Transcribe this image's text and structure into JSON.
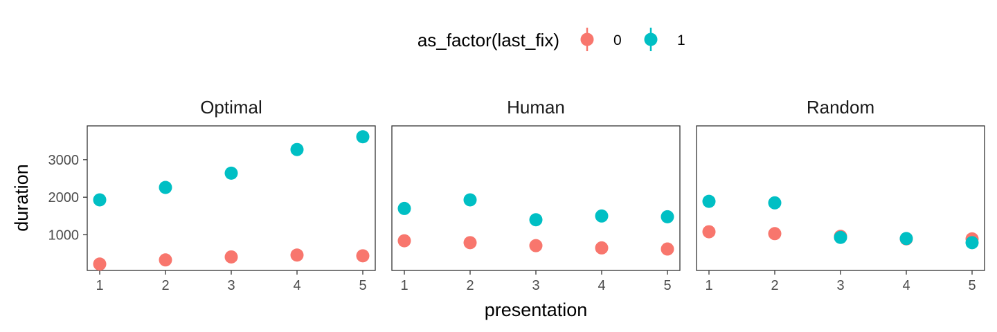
{
  "chart_data": {
    "type": "scatter",
    "xlabel": "presentation",
    "ylabel": "duration",
    "x_ticks": [
      1,
      2,
      3,
      4,
      5
    ],
    "y_ticks": [
      1000,
      2000,
      3000
    ],
    "ylim": [
      50,
      3900
    ],
    "xlim": [
      0.8,
      5.2
    ],
    "grid": false,
    "legend": {
      "title": "as_factor(last_fix)",
      "position": "top",
      "entries": [
        {
          "label": "0",
          "color": "#F8766D"
        },
        {
          "label": "1",
          "color": "#00BFC4"
        }
      ]
    },
    "facets": [
      {
        "title": "Optimal",
        "series": [
          {
            "legend_label": "0",
            "color": "#F8766D",
            "points": [
              {
                "x": 1,
                "y": 220
              },
              {
                "x": 2,
                "y": 330
              },
              {
                "x": 3,
                "y": 410
              },
              {
                "x": 4,
                "y": 460
              },
              {
                "x": 5,
                "y": 440
              }
            ]
          },
          {
            "legend_label": "1",
            "color": "#00BFC4",
            "points": [
              {
                "x": 1,
                "y": 1930
              },
              {
                "x": 2,
                "y": 2260
              },
              {
                "x": 3,
                "y": 2640
              },
              {
                "x": 4,
                "y": 3270
              },
              {
                "x": 5,
                "y": 3610
              }
            ]
          }
        ]
      },
      {
        "title": "Human",
        "series": [
          {
            "legend_label": "0",
            "color": "#F8766D",
            "points": [
              {
                "x": 1,
                "y": 840
              },
              {
                "x": 2,
                "y": 790
              },
              {
                "x": 3,
                "y": 710
              },
              {
                "x": 4,
                "y": 650
              },
              {
                "x": 5,
                "y": 620
              }
            ]
          },
          {
            "legend_label": "1",
            "color": "#00BFC4",
            "points": [
              {
                "x": 1,
                "y": 1700
              },
              {
                "x": 2,
                "y": 1930
              },
              {
                "x": 3,
                "y": 1400
              },
              {
                "x": 4,
                "y": 1500
              },
              {
                "x": 5,
                "y": 1480
              }
            ]
          }
        ]
      },
      {
        "title": "Random",
        "series": [
          {
            "legend_label": "0",
            "color": "#F8766D",
            "points": [
              {
                "x": 1,
                "y": 1080
              },
              {
                "x": 2,
                "y": 1030
              },
              {
                "x": 3,
                "y": 960
              },
              {
                "x": 4,
                "y": 890
              },
              {
                "x": 5,
                "y": 890
              }
            ]
          },
          {
            "legend_label": "1",
            "color": "#00BFC4",
            "points": [
              {
                "x": 1,
                "y": 1890
              },
              {
                "x": 2,
                "y": 1850
              },
              {
                "x": 3,
                "y": 930
              },
              {
                "x": 4,
                "y": 900
              },
              {
                "x": 5,
                "y": 790
              }
            ]
          }
        ]
      }
    ]
  }
}
